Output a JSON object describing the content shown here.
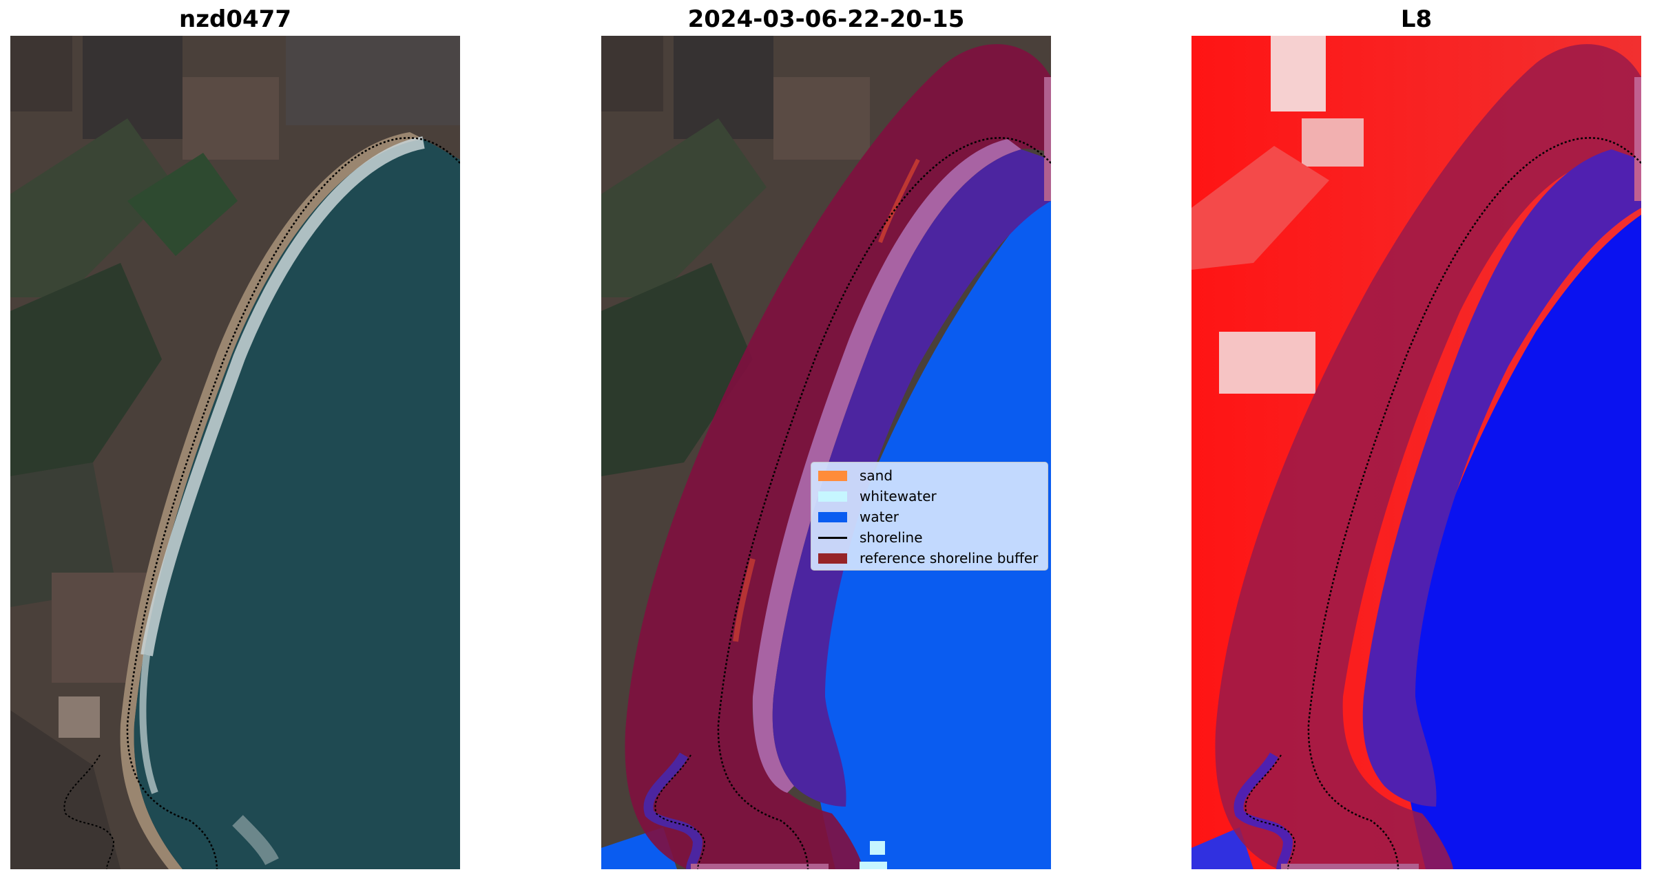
{
  "panels": [
    {
      "title": "nzd0477"
    },
    {
      "title": "2024-03-06-22-20-15"
    },
    {
      "title": "L8"
    }
  ],
  "legend": {
    "items": [
      {
        "label": "sand",
        "color": "#ff8c3a",
        "kind": "patch"
      },
      {
        "label": "whitewater",
        "color": "#c6f6ff",
        "kind": "patch"
      },
      {
        "label": "water",
        "color": "#0a5cf0",
        "kind": "patch"
      },
      {
        "label": "shoreline",
        "color": "#000000",
        "kind": "line"
      },
      {
        "label": "reference shoreline buffer",
        "color": "#962428",
        "kind": "patch"
      }
    ]
  },
  "colors": {
    "land": "#4a403a",
    "field_green": "#2f3f2c",
    "ocean_rgb": "#1f4a52",
    "water_class": "#0a5cf0",
    "buffer": "#80103f",
    "sand_overlay": "#a863a3",
    "water_overlay": "#4c25a0",
    "mndwi_land": "#f21212",
    "mndwi_water": "#0a12f0"
  }
}
